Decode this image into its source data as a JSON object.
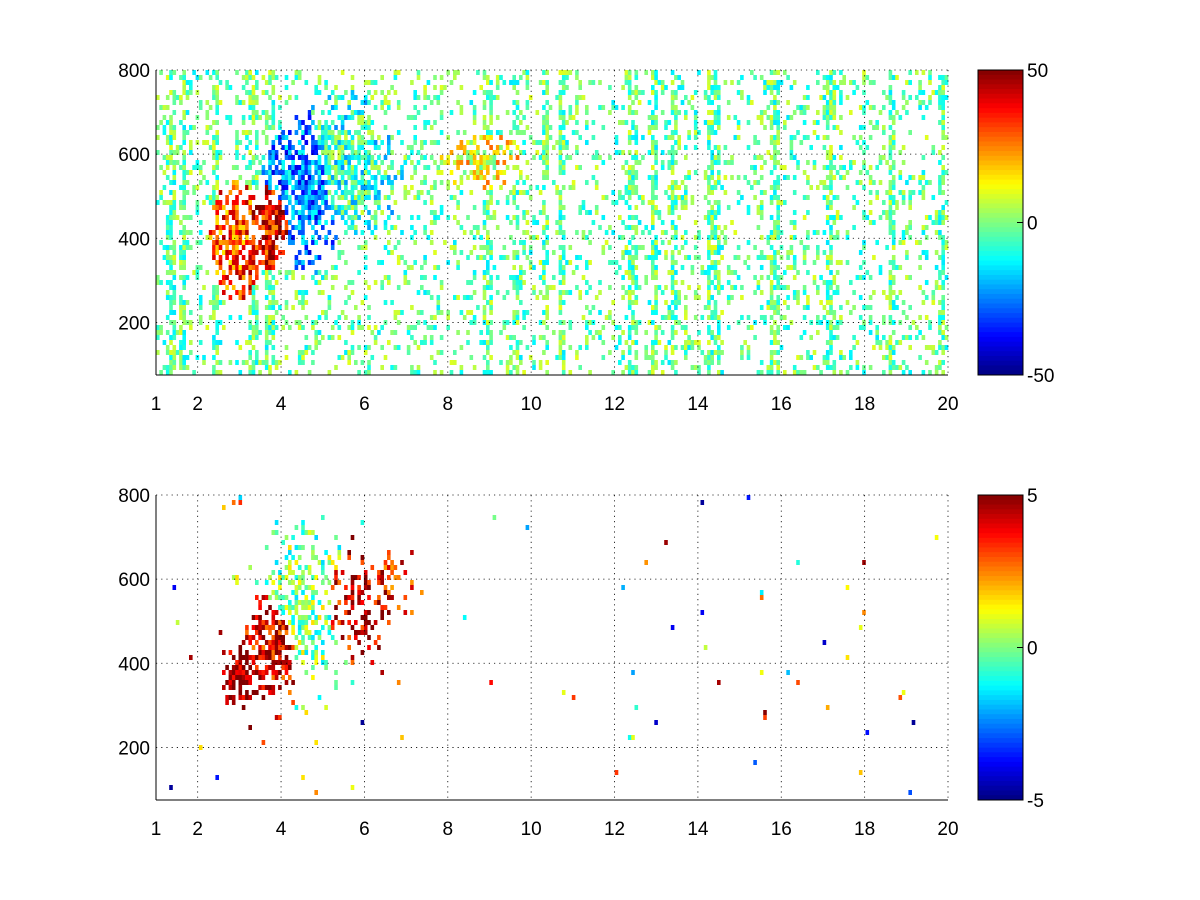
{
  "chart_data": [
    {
      "type": "heatmap",
      "title": "",
      "xlabel": "",
      "ylabel": "",
      "xlim": [
        1,
        20
      ],
      "ylim": [
        75,
        800
      ],
      "x_ticks": [
        1,
        2,
        4,
        6,
        8,
        10,
        12,
        14,
        16,
        18,
        20
      ],
      "y_ticks": [
        200,
        400,
        600,
        800
      ],
      "grid": true,
      "colormap": "jet",
      "colorbar": {
        "min": -50,
        "max": 50,
        "ticks": [
          50,
          0,
          -50
        ]
      },
      "blobs": [
        {
          "x": 2.9,
          "y": 390,
          "sx": 0.35,
          "sy": 80,
          "value": 30,
          "density": 0.95
        },
        {
          "x": 3.8,
          "y": 430,
          "sx": 0.35,
          "sy": 60,
          "value": 38,
          "density": 0.95
        },
        {
          "x": 4.6,
          "y": 510,
          "sx": 0.6,
          "sy": 110,
          "value": -25,
          "density": 0.9
        },
        {
          "x": 5.6,
          "y": 560,
          "sx": 0.8,
          "sy": 110,
          "value": -8,
          "density": 0.8
        },
        {
          "x": 8.8,
          "y": 580,
          "sx": 0.6,
          "sy": 40,
          "value": 12,
          "density": 0.8
        }
      ],
      "background": {
        "value_range": [
          -15,
          10
        ],
        "density": 0.18
      },
      "stripes_x": [
        1.3,
        1.6,
        2.4,
        3.3,
        3.7,
        8.9,
        9.6,
        10.3,
        10.7,
        12.4,
        12.9,
        13.4,
        14.3,
        14.4,
        15.8,
        17.1,
        17.2,
        18.6,
        19.8
      ]
    },
    {
      "type": "heatmap",
      "title": "",
      "xlabel": "",
      "ylabel": "",
      "xlim": [
        1,
        20
      ],
      "ylim": [
        75,
        800
      ],
      "x_ticks": [
        1,
        2,
        4,
        6,
        8,
        10,
        12,
        14,
        16,
        18,
        20
      ],
      "y_ticks": [
        200,
        400,
        600,
        800
      ],
      "grid": true,
      "colormap": "jet",
      "colorbar": {
        "min": -5,
        "max": 5,
        "ticks": [
          5,
          0,
          -5
        ]
      },
      "blobs": [
        {
          "x": 3.0,
          "y": 380,
          "sx": 0.22,
          "sy": 50,
          "value": 5,
          "density": 0.85
        },
        {
          "x": 3.8,
          "y": 440,
          "sx": 0.4,
          "sy": 70,
          "value": 4,
          "density": 0.9
        },
        {
          "x": 4.5,
          "y": 540,
          "sx": 0.55,
          "sy": 110,
          "value": 0,
          "density": 0.65
        },
        {
          "x": 5.8,
          "y": 540,
          "sx": 0.5,
          "sy": 60,
          "value": 4.2,
          "density": 0.7
        },
        {
          "x": 6.6,
          "y": 580,
          "sx": 0.3,
          "sy": 40,
          "value": 3.5,
          "density": 0.45
        }
      ],
      "background": {
        "value_range": [
          -5,
          5
        ],
        "density": 0.004
      },
      "stripes_x": []
    }
  ]
}
